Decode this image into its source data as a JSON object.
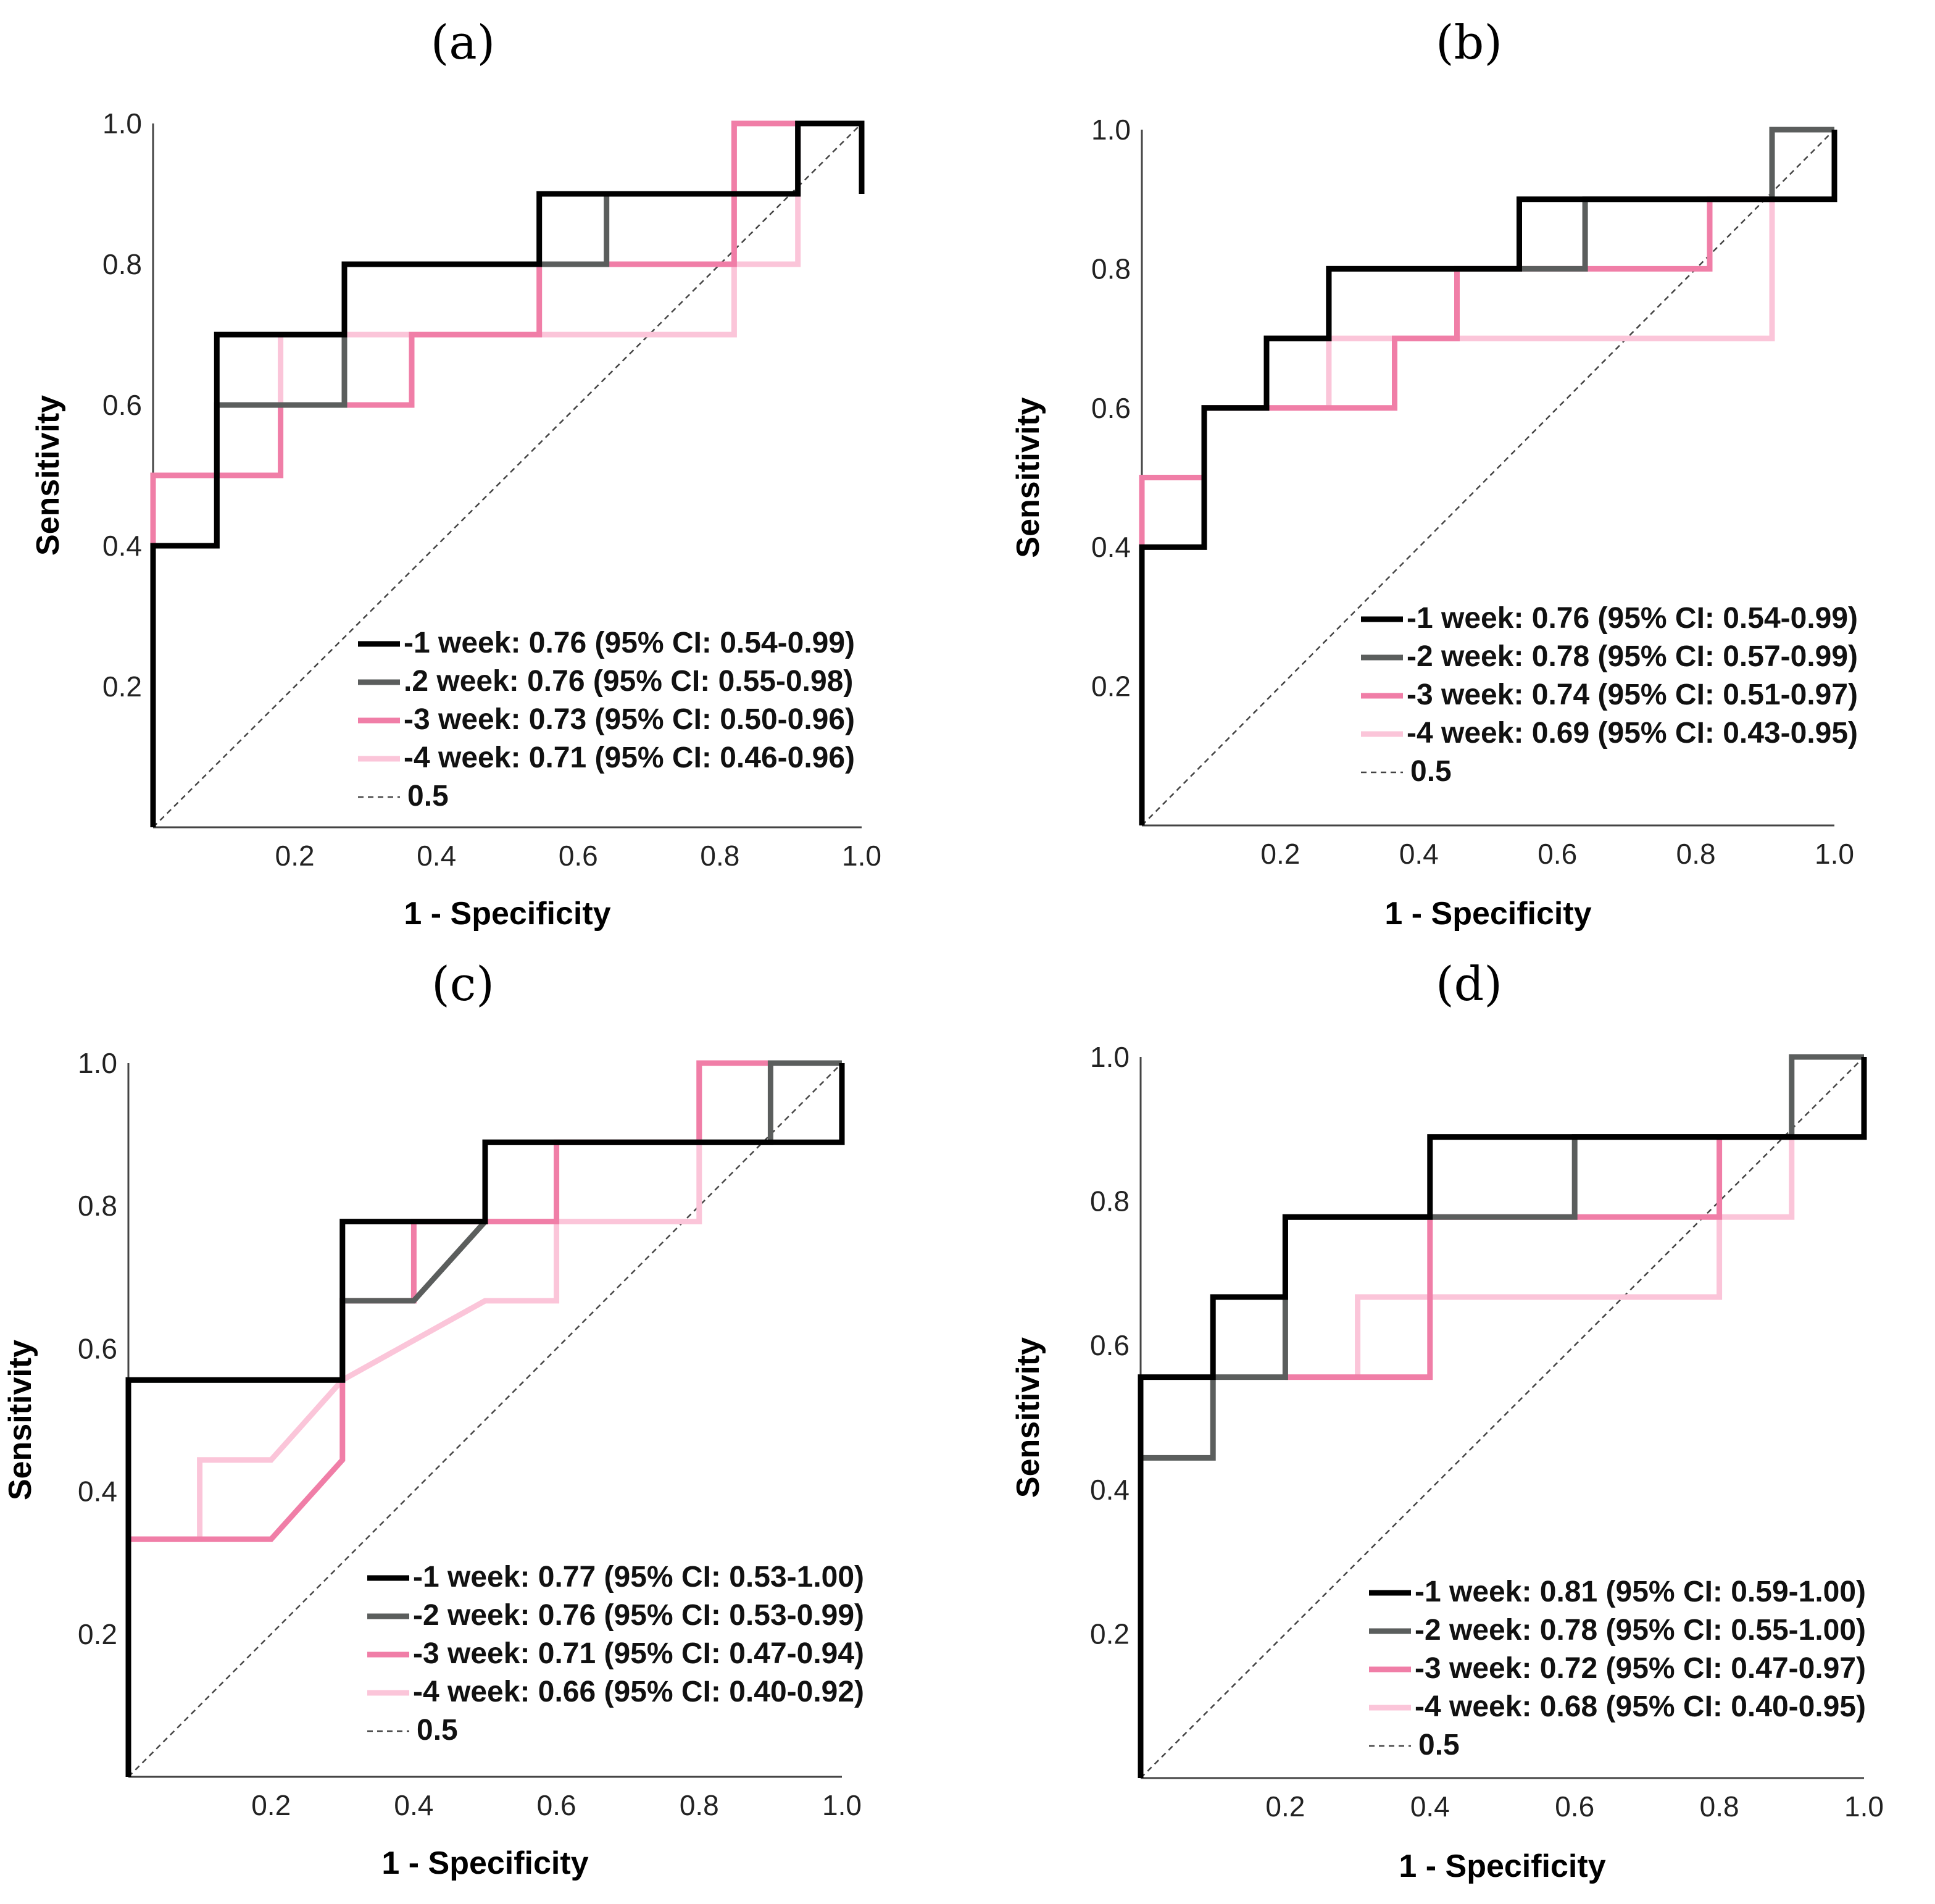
{
  "colors": {
    "week1": "#000000",
    "week2": "#5b5e5d",
    "week3": "#f07ea7",
    "week4": "#fbc5d9",
    "reference": "#444444"
  },
  "chart_data": [
    {
      "type": "line",
      "panel": "(a)",
      "xlabel": "1 - Specificity",
      "ylabel": "Sensitivity",
      "xlim": [
        0,
        1
      ],
      "ylim": [
        0,
        1
      ],
      "xticks": [
        "0.2",
        "0.4",
        "0.6",
        "0.8",
        "1.0"
      ],
      "yticks": [
        "0.2",
        "0.4",
        "0.6",
        "0.8",
        "1.0"
      ],
      "grid": false,
      "legend_position": "bottom-right",
      "series": [
        {
          "name": "-1 week: 0.76 (95% CI: 0.54-0.99)",
          "color_key": "week1",
          "points": [
            [
              0,
              0
            ],
            [
              0,
              0.4
            ],
            [
              0.09,
              0.4
            ],
            [
              0.09,
              0.7
            ],
            [
              0.18,
              0.7
            ],
            [
              0.18,
              0.7
            ],
            [
              0.27,
              0.7
            ],
            [
              0.27,
              0.8
            ],
            [
              0.545,
              0.8
            ],
            [
              0.545,
              0.9
            ],
            [
              0.91,
              0.9
            ],
            [
              0.91,
              1
            ],
            [
              1,
              1
            ],
            [
              1,
              0.9
            ]
          ]
        },
        {
          "name": ".2 week: 0.76 (95% CI: 0.55-0.98)",
          "color_key": "week2",
          "points": [
            [
              0,
              0
            ],
            [
              0,
              0.4
            ],
            [
              0.09,
              0.4
            ],
            [
              0.09,
              0.6
            ],
            [
              0.27,
              0.6
            ],
            [
              0.27,
              0.8
            ],
            [
              0.545,
              0.8
            ],
            [
              0.64,
              0.8
            ],
            [
              0.64,
              0.9
            ],
            [
              0.91,
              0.9
            ],
            [
              0.91,
              1
            ],
            [
              1,
              1
            ]
          ]
        },
        {
          "name": "-3 week: 0.73 (95% CI: 0.50-0.96)",
          "color_key": "week3",
          "points": [
            [
              0,
              0
            ],
            [
              0,
              0.5
            ],
            [
              0.18,
              0.5
            ],
            [
              0.18,
              0.6
            ],
            [
              0.365,
              0.6
            ],
            [
              0.365,
              0.7
            ],
            [
              0.545,
              0.7
            ],
            [
              0.545,
              0.8
            ],
            [
              0.82,
              0.8
            ],
            [
              0.82,
              1
            ],
            [
              1,
              1
            ]
          ]
        },
        {
          "name": "-4 week: 0.71 (95% CI: 0.46-0.96)",
          "color_key": "week4",
          "points": [
            [
              0,
              0
            ],
            [
              0,
              0.5
            ],
            [
              0.09,
              0.5
            ],
            [
              0.09,
              0.6
            ],
            [
              0.18,
              0.6
            ],
            [
              0.18,
              0.7
            ],
            [
              0.82,
              0.7
            ],
            [
              0.82,
              0.8
            ],
            [
              0.91,
              0.8
            ],
            [
              0.91,
              1
            ],
            [
              1,
              1
            ]
          ]
        }
      ],
      "reference_label": "0.5"
    },
    {
      "type": "line",
      "panel": "(b)",
      "xlabel": "1 - Specificity",
      "ylabel": "Sensitivity",
      "xlim": [
        0,
        1
      ],
      "ylim": [
        0,
        1
      ],
      "xticks": [
        "0.2",
        "0.4",
        "0.6",
        "0.8",
        "1.0"
      ],
      "yticks": [
        "0.2",
        "0.4",
        "0.6",
        "0.8",
        "1.0"
      ],
      "grid": false,
      "legend_position": "bottom-right",
      "series": [
        {
          "name": "-1 week: 0.76 (95% CI: 0.54-0.99)",
          "color_key": "week1",
          "points": [
            [
              0,
              0
            ],
            [
              0,
              0.4
            ],
            [
              0.09,
              0.4
            ],
            [
              0.09,
              0.6
            ],
            [
              0.18,
              0.6
            ],
            [
              0.18,
              0.7
            ],
            [
              0.27,
              0.7
            ],
            [
              0.27,
              0.8
            ],
            [
              0.545,
              0.8
            ],
            [
              0.545,
              0.9
            ],
            [
              0.91,
              0.9
            ],
            [
              0.91,
              0.9
            ],
            [
              1,
              0.9
            ],
            [
              1,
              1
            ]
          ]
        },
        {
          "name": "-2 week: 0.78 (95% CI: 0.57-0.99)",
          "color_key": "week2",
          "points": [
            [
              0,
              0
            ],
            [
              0,
              0.4
            ],
            [
              0.09,
              0.4
            ],
            [
              0.09,
              0.6
            ],
            [
              0.18,
              0.6
            ],
            [
              0.18,
              0.7
            ],
            [
              0.27,
              0.7
            ],
            [
              0.27,
              0.8
            ],
            [
              0.64,
              0.8
            ],
            [
              0.64,
              0.9
            ],
            [
              0.82,
              0.9
            ],
            [
              0.91,
              0.9
            ],
            [
              0.91,
              1
            ],
            [
              1,
              1
            ]
          ]
        },
        {
          "name": "-3 week: 0.74 (95% CI: 0.51-0.97)",
          "color_key": "week3",
          "points": [
            [
              0,
              0
            ],
            [
              0,
              0.5
            ],
            [
              0.09,
              0.5
            ],
            [
              0.09,
              0.6
            ],
            [
              0.365,
              0.6
            ],
            [
              0.365,
              0.7
            ],
            [
              0.455,
              0.7
            ],
            [
              0.455,
              0.8
            ],
            [
              0.82,
              0.8
            ],
            [
              0.82,
              0.9
            ],
            [
              0.91,
              0.9
            ],
            [
              0.91,
              1
            ],
            [
              1,
              1
            ]
          ]
        },
        {
          "name": "-4 week: 0.69 (95% CI: 0.43-0.95)",
          "color_key": "week4",
          "points": [
            [
              0,
              0
            ],
            [
              0,
              0.5
            ],
            [
              0.09,
              0.5
            ],
            [
              0.09,
              0.6
            ],
            [
              0.27,
              0.6
            ],
            [
              0.27,
              0.7
            ],
            [
              0.91,
              0.7
            ],
            [
              0.91,
              1
            ],
            [
              1,
              1
            ]
          ]
        }
      ],
      "reference_label": "0.5"
    },
    {
      "type": "line",
      "panel": "(c)",
      "xlabel": "1 - Specificity",
      "ylabel": "Sensitivity",
      "xlim": [
        0,
        1
      ],
      "ylim": [
        0,
        1
      ],
      "xticks": [
        "0.2",
        "0.4",
        "0.6",
        "0.8",
        "1.0"
      ],
      "yticks": [
        "0.2",
        "0.4",
        "0.6",
        "0.8",
        "1.0"
      ],
      "grid": false,
      "legend_position": "bottom-right",
      "series": [
        {
          "name": "-1 week: 0.77 (95% CI: 0.53-1.00)",
          "color_key": "week1",
          "points": [
            [
              0,
              0
            ],
            [
              0,
              0.556
            ],
            [
              0.3,
              0.556
            ],
            [
              0.3,
              0.778
            ],
            [
              0.5,
              0.778
            ],
            [
              0.5,
              0.889
            ],
            [
              0.9,
              0.889
            ],
            [
              1,
              0.889
            ],
            [
              1,
              1
            ]
          ]
        },
        {
          "name": "-2 week: 0.76 (95% CI: 0.53-0.99)",
          "color_key": "week2",
          "points": [
            [
              0,
              0
            ],
            [
              0,
              0.556
            ],
            [
              0.3,
              0.556
            ],
            [
              0.3,
              0.667
            ],
            [
              0.4,
              0.667
            ],
            [
              0.5,
              0.778
            ],
            [
              0.5,
              0.889
            ],
            [
              0.9,
              0.889
            ],
            [
              0.9,
              1
            ],
            [
              1,
              1
            ]
          ]
        },
        {
          "name": "-3 week: 0.71 (95% CI: 0.47-0.94)",
          "color_key": "week3",
          "points": [
            [
              0,
              0.333
            ],
            [
              0.2,
              0.333
            ],
            [
              0.3,
              0.444
            ],
            [
              0.3,
              0.667
            ],
            [
              0.4,
              0.667
            ],
            [
              0.4,
              0.778
            ],
            [
              0.6,
              0.778
            ],
            [
              0.6,
              0.889
            ],
            [
              0.8,
              0.889
            ],
            [
              0.8,
              1
            ],
            [
              0.9,
              1
            ]
          ]
        },
        {
          "name": "-4 week: 0.66 (95% CI: 0.40-0.92)",
          "color_key": "week4",
          "points": [
            [
              0,
              0.333
            ],
            [
              0.1,
              0.333
            ],
            [
              0.1,
              0.444
            ],
            [
              0.2,
              0.444
            ],
            [
              0.3,
              0.556
            ],
            [
              0.5,
              0.667
            ],
            [
              0.6,
              0.667
            ],
            [
              0.6,
              0.778
            ],
            [
              0.8,
              0.778
            ],
            [
              0.8,
              1
            ],
            [
              0.9,
              1
            ]
          ]
        }
      ],
      "reference_label": "0.5"
    },
    {
      "type": "line",
      "panel": "(d)",
      "xlabel": "1 - Specificity",
      "ylabel": "Sensitivity",
      "xlim": [
        0,
        1
      ],
      "ylim": [
        0,
        1
      ],
      "xticks": [
        "0.2",
        "0.4",
        "0.6",
        "0.8",
        "1.0"
      ],
      "yticks": [
        "0.2",
        "0.4",
        "0.6",
        "0.8",
        "1.0"
      ],
      "grid": false,
      "legend_position": "bottom-right",
      "series": [
        {
          "name": "-1 week: 0.81 (95% CI: 0.59-1.00)",
          "color_key": "week1",
          "points": [
            [
              0,
              0
            ],
            [
              0,
              0.556
            ],
            [
              0.1,
              0.556
            ],
            [
              0.1,
              0.667
            ],
            [
              0.2,
              0.667
            ],
            [
              0.2,
              0.778
            ],
            [
              0.4,
              0.778
            ],
            [
              0.4,
              0.889
            ],
            [
              1,
              0.889
            ],
            [
              1,
              1
            ]
          ]
        },
        {
          "name": "-2 week: 0.78 (95% CI: 0.55-1.00)",
          "color_key": "week2",
          "points": [
            [
              0,
              0.444
            ],
            [
              0.1,
              0.444
            ],
            [
              0.1,
              0.556
            ],
            [
              0.2,
              0.556
            ],
            [
              0.2,
              0.778
            ],
            [
              0.6,
              0.778
            ],
            [
              0.6,
              0.889
            ],
            [
              0.9,
              0.889
            ],
            [
              0.9,
              1
            ],
            [
              1,
              1
            ]
          ]
        },
        {
          "name": "-3 week: 0.72 (95% CI: 0.47-0.97)",
          "color_key": "week3",
          "points": [
            [
              0.2,
              0.556
            ],
            [
              0.4,
              0.556
            ],
            [
              0.4,
              0.778
            ],
            [
              0.8,
              0.778
            ],
            [
              0.8,
              0.889
            ],
            [
              0.9,
              0.889
            ]
          ]
        },
        {
          "name": "-4 week: 0.68 (95% CI: 0.40-0.95)",
          "color_key": "week4",
          "points": [
            [
              0.3,
              0.556
            ],
            [
              0.3,
              0.667
            ],
            [
              0.8,
              0.667
            ],
            [
              0.8,
              0.778
            ],
            [
              0.9,
              0.778
            ],
            [
              0.9,
              0.889
            ]
          ]
        }
      ],
      "reference_label": "0.5"
    }
  ]
}
